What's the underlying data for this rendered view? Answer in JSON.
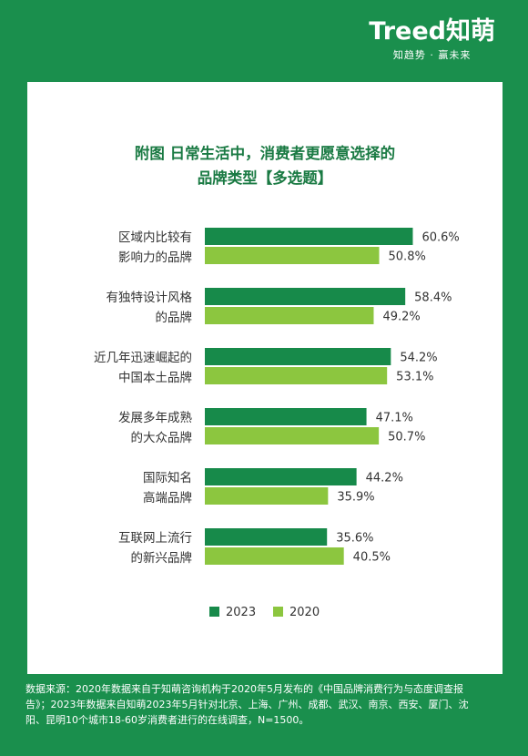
{
  "brand": {
    "logo": "Treed知萌",
    "tagline": "知趋势 · 赢未来"
  },
  "chart_data": {
    "type": "bar",
    "orientation": "horizontal",
    "title_line1": "附图 日常生活中，消费者更愿意选择的",
    "title_line2": "品牌类型【多选题】",
    "categories": [
      [
        "区域内比较有",
        "影响力的品牌"
      ],
      [
        "有独特设计风格",
        "的品牌"
      ],
      [
        "近几年迅速崛起的",
        "中国本土品牌"
      ],
      [
        "发展多年成熟",
        "的大众品牌"
      ],
      [
        "国际知名",
        "高端品牌"
      ],
      [
        "互联网上流行",
        "的新兴品牌"
      ]
    ],
    "series": [
      {
        "name": "2023",
        "color": "#178a4a",
        "values": [
          60.6,
          58.4,
          54.2,
          47.1,
          44.2,
          35.6
        ]
      },
      {
        "name": "2020",
        "color": "#8cc63f",
        "values": [
          50.8,
          49.2,
          53.1,
          50.7,
          35.9,
          40.5
        ]
      }
    ],
    "value_suffix": "%",
    "legend_position": "bottom",
    "grid": false
  },
  "footer": {
    "line1": "数据来源：2020年数据来自于知萌咨询机构于2020年5月发布的《中国品牌消费行为与态度调查报",
    "line2": "告》；2023年数据来自知萌2023年5月针对北京、上海、广州、成都、武汉、南京、西安、厦门、沈",
    "line3": "阳、昆明10个城市18-60岁消费者进行的在线调查，N=1500。"
  }
}
